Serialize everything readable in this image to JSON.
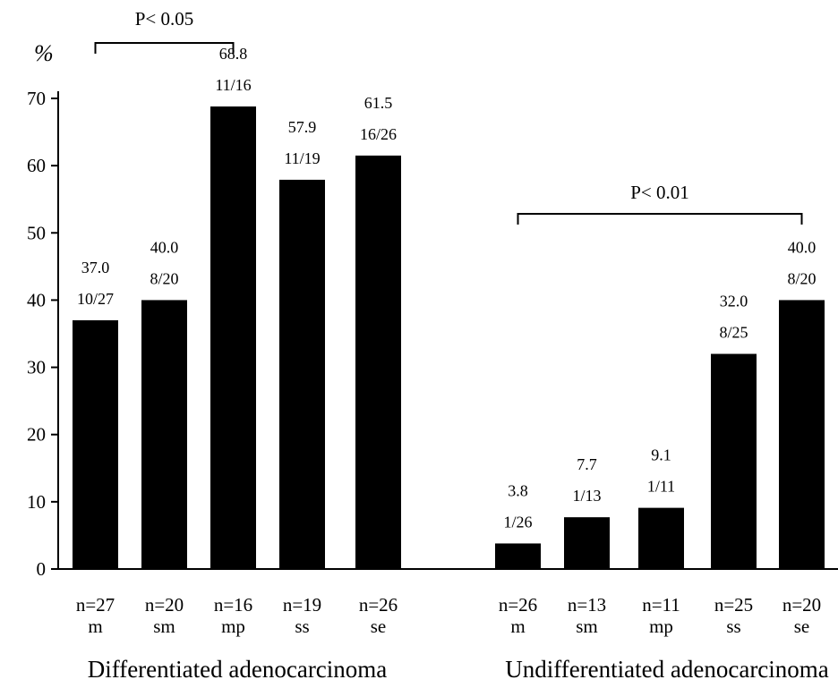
{
  "chart_data": {
    "type": "bar",
    "title": "",
    "ylabel": "%",
    "ylim": [
      0,
      70
    ],
    "yticks": [
      0,
      10,
      20,
      30,
      40,
      50,
      60,
      70
    ],
    "bar_color": "#000000",
    "groups": [
      {
        "label": "Differentiated adenocarcinoma",
        "bars": [
          {
            "category": "m",
            "n_label": "n=27",
            "value": 37.0,
            "value_label": "37.0",
            "fraction": "10/27"
          },
          {
            "category": "sm",
            "n_label": "n=20",
            "value": 40.0,
            "value_label": "40.0",
            "fraction": "8/20"
          },
          {
            "category": "mp",
            "n_label": "n=16",
            "value": 68.8,
            "value_label": "68.8",
            "fraction": "11/16"
          },
          {
            "category": "ss",
            "n_label": "n=19",
            "value": 57.9,
            "value_label": "57.9",
            "fraction": "11/19"
          },
          {
            "category": "se",
            "n_label": "n=26",
            "value": 61.5,
            "value_label": "61.5",
            "fraction": "16/26"
          }
        ]
      },
      {
        "label": "Undifferentiated adenocarcinoma",
        "bars": [
          {
            "category": "m",
            "n_label": "n=26",
            "value": 3.8,
            "value_label": "3.8",
            "fraction": "1/26"
          },
          {
            "category": "sm",
            "n_label": "n=13",
            "value": 7.7,
            "value_label": "7.7",
            "fraction": "1/13"
          },
          {
            "category": "mp",
            "n_label": "n=11",
            "value": 9.1,
            "value_label": "9.1",
            "fraction": "1/11"
          },
          {
            "category": "ss",
            "n_label": "n=25",
            "value": 32.0,
            "value_label": "32.0",
            "fraction": "8/25"
          },
          {
            "category": "se",
            "n_label": "n=20",
            "value": 40.0,
            "value_label": "40.0",
            "fraction": "8/20"
          }
        ]
      }
    ],
    "annotations": [
      {
        "text": "P< 0.05",
        "group": 0,
        "from_bar": 0,
        "to_bar": 2
      },
      {
        "text": "P< 0.01",
        "group": 1,
        "from_bar": 0,
        "to_bar": 4
      }
    ]
  }
}
